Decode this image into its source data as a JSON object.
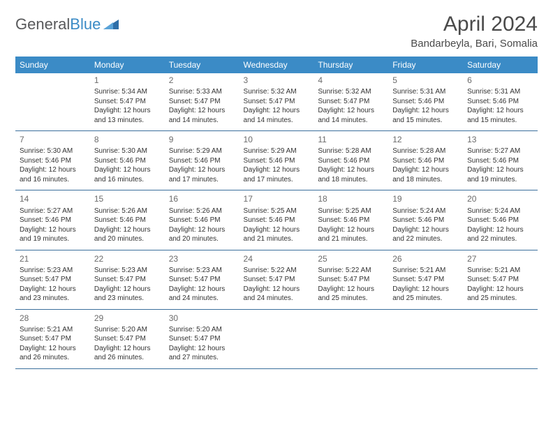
{
  "brand": {
    "text_general": "General",
    "text_blue": "Blue"
  },
  "title": "April 2024",
  "location": "Bandarbeyla, Bari, Somalia",
  "colors": {
    "header_bg": "#3b8bc6",
    "row_border": "#3b6f9c",
    "text": "#333333",
    "title_text": "#4a4a4a"
  },
  "day_headers": [
    "Sunday",
    "Monday",
    "Tuesday",
    "Wednesday",
    "Thursday",
    "Friday",
    "Saturday"
  ],
  "weeks": [
    [
      null,
      {
        "n": "1",
        "sunrise": "Sunrise: 5:34 AM",
        "sunset": "Sunset: 5:47 PM",
        "day": "Daylight: 12 hours and 13 minutes."
      },
      {
        "n": "2",
        "sunrise": "Sunrise: 5:33 AM",
        "sunset": "Sunset: 5:47 PM",
        "day": "Daylight: 12 hours and 14 minutes."
      },
      {
        "n": "3",
        "sunrise": "Sunrise: 5:32 AM",
        "sunset": "Sunset: 5:47 PM",
        "day": "Daylight: 12 hours and 14 minutes."
      },
      {
        "n": "4",
        "sunrise": "Sunrise: 5:32 AM",
        "sunset": "Sunset: 5:47 PM",
        "day": "Daylight: 12 hours and 14 minutes."
      },
      {
        "n": "5",
        "sunrise": "Sunrise: 5:31 AM",
        "sunset": "Sunset: 5:46 PM",
        "day": "Daylight: 12 hours and 15 minutes."
      },
      {
        "n": "6",
        "sunrise": "Sunrise: 5:31 AM",
        "sunset": "Sunset: 5:46 PM",
        "day": "Daylight: 12 hours and 15 minutes."
      }
    ],
    [
      {
        "n": "7",
        "sunrise": "Sunrise: 5:30 AM",
        "sunset": "Sunset: 5:46 PM",
        "day": "Daylight: 12 hours and 16 minutes."
      },
      {
        "n": "8",
        "sunrise": "Sunrise: 5:30 AM",
        "sunset": "Sunset: 5:46 PM",
        "day": "Daylight: 12 hours and 16 minutes."
      },
      {
        "n": "9",
        "sunrise": "Sunrise: 5:29 AM",
        "sunset": "Sunset: 5:46 PM",
        "day": "Daylight: 12 hours and 17 minutes."
      },
      {
        "n": "10",
        "sunrise": "Sunrise: 5:29 AM",
        "sunset": "Sunset: 5:46 PM",
        "day": "Daylight: 12 hours and 17 minutes."
      },
      {
        "n": "11",
        "sunrise": "Sunrise: 5:28 AM",
        "sunset": "Sunset: 5:46 PM",
        "day": "Daylight: 12 hours and 18 minutes."
      },
      {
        "n": "12",
        "sunrise": "Sunrise: 5:28 AM",
        "sunset": "Sunset: 5:46 PM",
        "day": "Daylight: 12 hours and 18 minutes."
      },
      {
        "n": "13",
        "sunrise": "Sunrise: 5:27 AM",
        "sunset": "Sunset: 5:46 PM",
        "day": "Daylight: 12 hours and 19 minutes."
      }
    ],
    [
      {
        "n": "14",
        "sunrise": "Sunrise: 5:27 AM",
        "sunset": "Sunset: 5:46 PM",
        "day": "Daylight: 12 hours and 19 minutes."
      },
      {
        "n": "15",
        "sunrise": "Sunrise: 5:26 AM",
        "sunset": "Sunset: 5:46 PM",
        "day": "Daylight: 12 hours and 20 minutes."
      },
      {
        "n": "16",
        "sunrise": "Sunrise: 5:26 AM",
        "sunset": "Sunset: 5:46 PM",
        "day": "Daylight: 12 hours and 20 minutes."
      },
      {
        "n": "17",
        "sunrise": "Sunrise: 5:25 AM",
        "sunset": "Sunset: 5:46 PM",
        "day": "Daylight: 12 hours and 21 minutes."
      },
      {
        "n": "18",
        "sunrise": "Sunrise: 5:25 AM",
        "sunset": "Sunset: 5:46 PM",
        "day": "Daylight: 12 hours and 21 minutes."
      },
      {
        "n": "19",
        "sunrise": "Sunrise: 5:24 AM",
        "sunset": "Sunset: 5:46 PM",
        "day": "Daylight: 12 hours and 22 minutes."
      },
      {
        "n": "20",
        "sunrise": "Sunrise: 5:24 AM",
        "sunset": "Sunset: 5:46 PM",
        "day": "Daylight: 12 hours and 22 minutes."
      }
    ],
    [
      {
        "n": "21",
        "sunrise": "Sunrise: 5:23 AM",
        "sunset": "Sunset: 5:47 PM",
        "day": "Daylight: 12 hours and 23 minutes."
      },
      {
        "n": "22",
        "sunrise": "Sunrise: 5:23 AM",
        "sunset": "Sunset: 5:47 PM",
        "day": "Daylight: 12 hours and 23 minutes."
      },
      {
        "n": "23",
        "sunrise": "Sunrise: 5:23 AM",
        "sunset": "Sunset: 5:47 PM",
        "day": "Daylight: 12 hours and 24 minutes."
      },
      {
        "n": "24",
        "sunrise": "Sunrise: 5:22 AM",
        "sunset": "Sunset: 5:47 PM",
        "day": "Daylight: 12 hours and 24 minutes."
      },
      {
        "n": "25",
        "sunrise": "Sunrise: 5:22 AM",
        "sunset": "Sunset: 5:47 PM",
        "day": "Daylight: 12 hours and 25 minutes."
      },
      {
        "n": "26",
        "sunrise": "Sunrise: 5:21 AM",
        "sunset": "Sunset: 5:47 PM",
        "day": "Daylight: 12 hours and 25 minutes."
      },
      {
        "n": "27",
        "sunrise": "Sunrise: 5:21 AM",
        "sunset": "Sunset: 5:47 PM",
        "day": "Daylight: 12 hours and 25 minutes."
      }
    ],
    [
      {
        "n": "28",
        "sunrise": "Sunrise: 5:21 AM",
        "sunset": "Sunset: 5:47 PM",
        "day": "Daylight: 12 hours and 26 minutes."
      },
      {
        "n": "29",
        "sunrise": "Sunrise: 5:20 AM",
        "sunset": "Sunset: 5:47 PM",
        "day": "Daylight: 12 hours and 26 minutes."
      },
      {
        "n": "30",
        "sunrise": "Sunrise: 5:20 AM",
        "sunset": "Sunset: 5:47 PM",
        "day": "Daylight: 12 hours and 27 minutes."
      },
      null,
      null,
      null,
      null
    ]
  ]
}
